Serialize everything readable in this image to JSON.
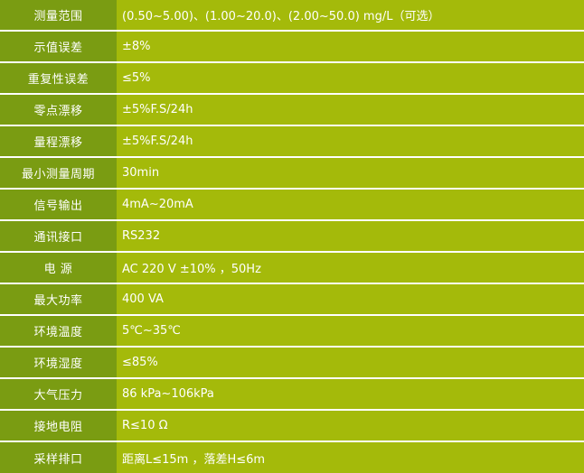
{
  "colors": {
    "label_bg": "#7a9c12",
    "value_bg": "#a4ba0a",
    "separator": "#ffffff",
    "text": "#ffffff"
  },
  "table": {
    "rows": [
      {
        "label": "测量范围",
        "value": "(0.50~5.00)、(1.00~20.0)、(2.00~50.0) mg/L（可选）"
      },
      {
        "label": "示值误差",
        "value": "±8%"
      },
      {
        "label": "重复性误差",
        "value": "≤5%"
      },
      {
        "label": "零点漂移",
        "value": "±5%F.S/24h"
      },
      {
        "label": "量程漂移",
        "value": "±5%F.S/24h"
      },
      {
        "label": "最小测量周期",
        "value": "30min"
      },
      {
        "label": "信号输出",
        "value": "4mA~20mA"
      },
      {
        "label": "通讯接口",
        "value": "RS232"
      },
      {
        "label": "电 源",
        "value": "AC 220 V ±10% ，50Hz"
      },
      {
        "label": "最大功率",
        "value": "400 VA"
      },
      {
        "label": "环境温度",
        "value": "5℃~35℃"
      },
      {
        "label": "环境湿度",
        "value": "≤85%"
      },
      {
        "label": "大气压力",
        "value": "86 kPa~106kPa"
      },
      {
        "label": "接地电阻",
        "value": "R≤10 Ω"
      },
      {
        "label": "采样排口",
        "value": "距离L≤15m ，落差H≤6m"
      }
    ]
  }
}
